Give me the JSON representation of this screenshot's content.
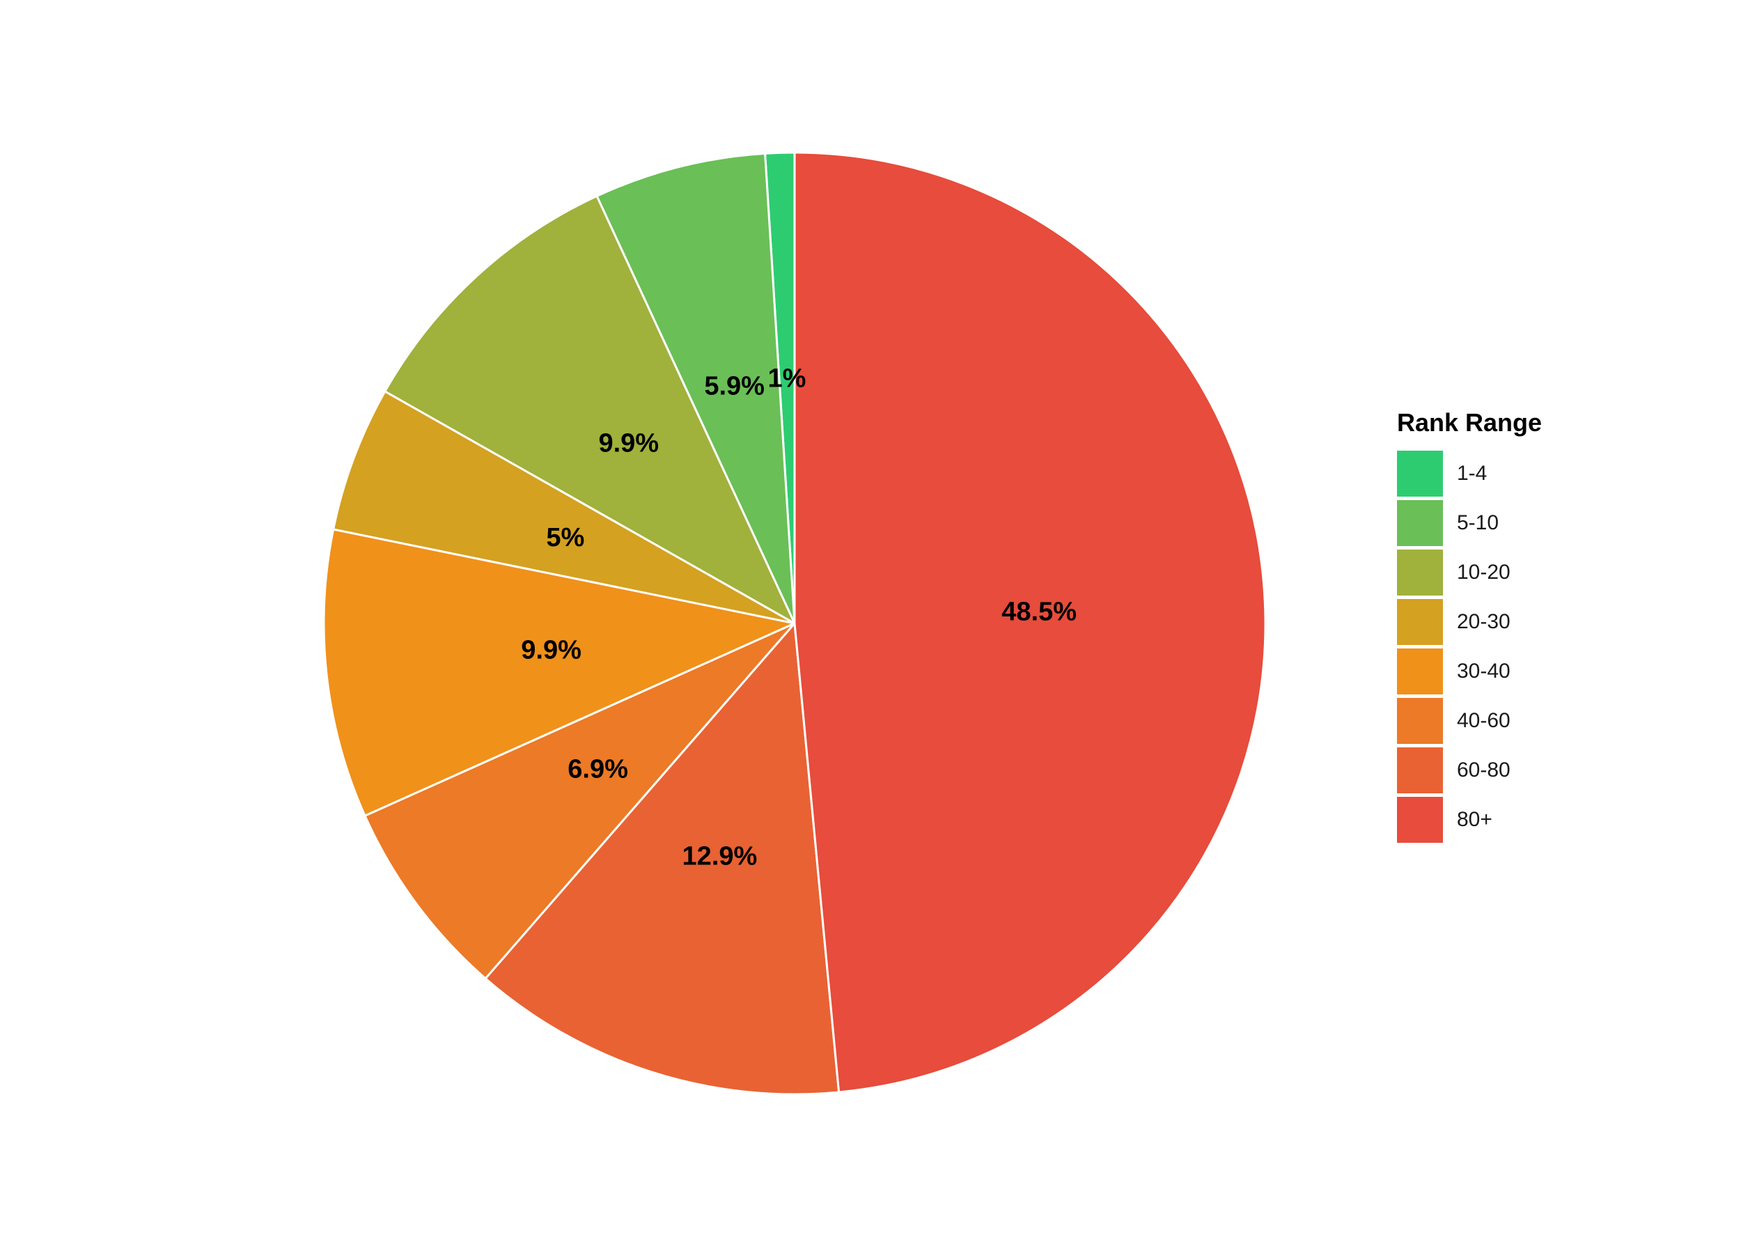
{
  "chart_data": {
    "type": "pie",
    "categories": [
      "1-4",
      "5-10",
      "10-20",
      "20-30",
      "30-40",
      "40-60",
      "60-80",
      "80+"
    ],
    "values": [
      1,
      5.9,
      9.9,
      5,
      9.9,
      6.9,
      12.9,
      48.5
    ],
    "labels": [
      "1%",
      "5.9%",
      "9.9%",
      "5%",
      "9.9%",
      "6.9%",
      "12.9%",
      "48.5%"
    ],
    "colors": [
      "#2ECC71",
      "#6ABF57",
      "#A0B13C",
      "#D4A121",
      "#F0911A",
      "#EC7A27",
      "#E96233",
      "#E74C3C"
    ],
    "direction": "counterclockwise",
    "start": "top",
    "legend": {
      "title": "Rank Range",
      "position": "right"
    }
  }
}
